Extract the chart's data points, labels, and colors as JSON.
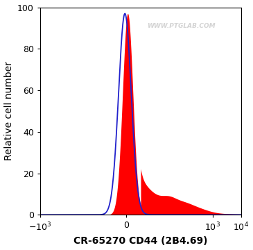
{
  "ylabel": "Relative cell number",
  "xlabel": "CR-65270 CD44 (2B4.69)",
  "ylim": [
    0,
    100
  ],
  "watermark": "WWW.PTGLAB.COM",
  "background_color": "#ffffff",
  "plot_bg_color": "#ffffff",
  "red_fill_color": "#ff0000",
  "blue_line_color": "#2222cc",
  "tick_label_fontsize": 9,
  "axis_label_fontsize": 10,
  "xlabel_fontsize": 10,
  "yticks": [
    0,
    20,
    40,
    60,
    80,
    100
  ],
  "xtick_vals": [
    -1000,
    0,
    1000,
    10000
  ],
  "xtick_labels": [
    "$-10^3$",
    "0",
    "$10^3$",
    "$10^4$"
  ]
}
